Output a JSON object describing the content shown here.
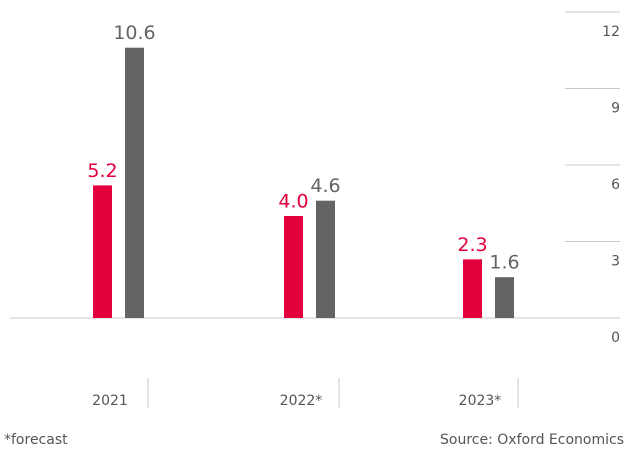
{
  "chart_data": {
    "type": "bar",
    "categories": [
      "2021",
      "2022*",
      "2023*"
    ],
    "series": [
      {
        "color": "#e2003d",
        "values": [
          5.2,
          4.0,
          2.3
        ],
        "value_labels": [
          "5.2",
          "4.0",
          "2.3"
        ]
      },
      {
        "color": "#646464",
        "values": [
          10.6,
          4.6,
          1.6
        ],
        "value_labels": [
          "10.6",
          "4.6",
          "1.6"
        ]
      }
    ],
    "ylim": [
      0,
      12
    ],
    "yticks": [
      0,
      3,
      6,
      9,
      12
    ],
    "grid": true,
    "footnote": "*forecast",
    "source": "Source: Oxford Economics"
  }
}
